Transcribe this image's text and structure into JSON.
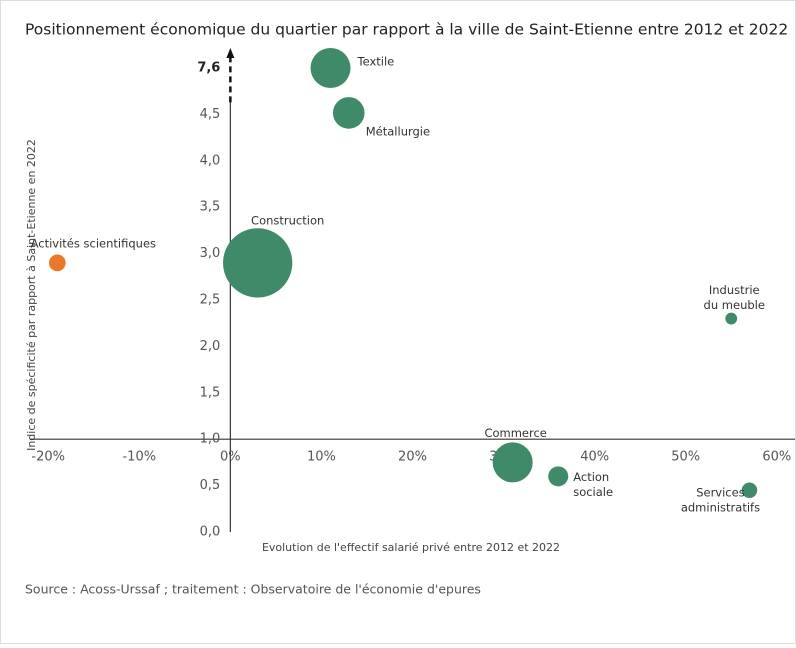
{
  "chart_data": {
    "type": "bubble",
    "title": "Positionnement économique du quartier par rapport à la ville de Saint-Etienne entre 2012 et 2022",
    "x_label": "Evolution de l'effectif salarié privé entre 2012 et 2022",
    "y_label": "Indice de spécificité par rapport à Saint-Etienne en 2022",
    "source": "Source : Acoss-Urssaf ; traitement : Observatoire de l'économie d'epures",
    "labels": [
      [
        "Activités scientifiques"
      ],
      [
        "Construction"
      ],
      [
        "Textile"
      ],
      [
        "Métallurgie"
      ],
      [
        "Industrie",
        "du meuble"
      ],
      [
        "Commerce"
      ],
      [
        "Action",
        "sociale"
      ],
      [
        "Services",
        "administratifs"
      ]
    ],
    "x": [
      -19,
      3,
      11,
      13,
      55,
      31,
      36,
      57
    ],
    "y": [
      2.9,
      2.9,
      7.6,
      4.6,
      2.3,
      0.75,
      0.6,
      0.45
    ],
    "sizes": [
      70,
      1200,
      400,
      250,
      35,
      400,
      100,
      60
    ],
    "colors": [
      "#e8782a",
      "#3f8a68",
      "#3f8a68",
      "#3f8a68",
      "#3f8a68",
      "#3f8a68",
      "#3f8a68",
      "#3f8a68"
    ],
    "xlim": [
      -22,
      62
    ],
    "xticks": [
      {
        "value": -20,
        "label": "-20%"
      },
      {
        "value": -10,
        "label": "-10%"
      },
      {
        "value": 0,
        "label": "0%"
      },
      {
        "value": 10,
        "label": "10%"
      },
      {
        "value": 20,
        "label": "20%"
      },
      {
        "value": 30,
        "label": "30%"
      },
      {
        "value": 40,
        "label": "40%"
      },
      {
        "value": 50,
        "label": "50%"
      },
      {
        "value": 60,
        "label": "60%"
      }
    ],
    "ylim": [
      0,
      7.6
    ],
    "yticks": [
      {
        "value": 0,
        "label": "0,0"
      },
      {
        "value": 0.5,
        "label": "0,5"
      },
      {
        "value": 1,
        "label": "1,0"
      },
      {
        "value": 1.5,
        "label": "1,5"
      },
      {
        "value": 2,
        "label": "2,0"
      },
      {
        "value": 2.5,
        "label": "2,5"
      },
      {
        "value": 3,
        "label": "3,0"
      },
      {
        "value": 3.5,
        "label": "3,5"
      },
      {
        "value": 4,
        "label": "4,0"
      },
      {
        "value": 4.5,
        "label": "4,5"
      },
      {
        "value": 7.6,
        "label": "7,6"
      }
    ],
    "y_axis_break": true,
    "x_axis_position": 1
  }
}
